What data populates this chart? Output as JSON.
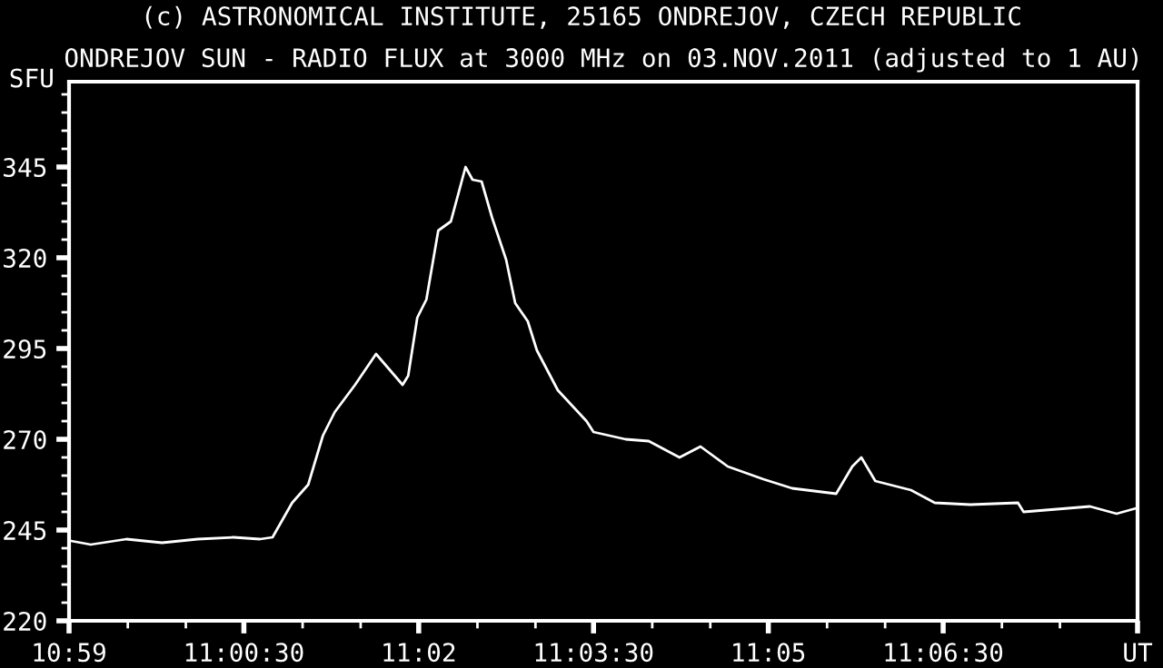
{
  "chart_data": {
    "type": "line",
    "title": "(c) ASTRONOMICAL INSTITUTE, 25165 ONDREJOV, CZECH REPUBLIC",
    "subtitle": "ONDREJOV SUN - RADIO FLUX at 3000 MHz on 03.NOV.2011 (adjusted to 1 AU)",
    "ylabel": "SFU",
    "x": [
      10.9836,
      10.9864,
      10.9915,
      10.9966,
      11.0017,
      11.0068,
      11.0106,
      11.0124,
      11.0152,
      11.0175,
      11.0196,
      11.0213,
      11.0242,
      11.0272,
      11.031,
      11.0318,
      11.0331,
      11.0344,
      11.0361,
      11.0379,
      11.04,
      11.041,
      11.0423,
      11.0438,
      11.0458,
      11.0471,
      11.0489,
      11.0502,
      11.0532,
      11.0573,
      11.0583,
      11.0629,
      11.0662,
      11.0706,
      11.0736,
      11.0775,
      11.0826,
      11.0867,
      11.093,
      11.0953,
      11.0966,
      11.0986,
      11.1037,
      11.1071,
      11.1122,
      11.119,
      11.1198,
      11.1293,
      11.1331,
      11.1359
    ],
    "series": [
      {
        "color": "#ffffff",
        "values": [
          242,
          241,
          242.5,
          241.5,
          242.5,
          243,
          242.5,
          243,
          252.5,
          257.5,
          271,
          277.5,
          285,
          293.5,
          285,
          287.5,
          303.5,
          308.5,
          327.5,
          330,
          345,
          341.5,
          341,
          331,
          319.5,
          307.5,
          302.5,
          294.5,
          283.5,
          275,
          272,
          270,
          269.5,
          265,
          268,
          262.5,
          259,
          256.5,
          255,
          262.5,
          265,
          258.5,
          256,
          252.5,
          252,
          252.5,
          250,
          251.5,
          249.5,
          251
        ]
      }
    ],
    "xlim": [
      10.9833,
      11.1361
    ],
    "xticks": [
      {
        "value": 10.9833,
        "label": "10:59"
      },
      {
        "value": 10.9917,
        "label": null
      },
      {
        "value": 11.0,
        "label": null
      },
      {
        "value": 11.0083,
        "label": "11:00:30"
      },
      {
        "value": 11.0167,
        "label": null
      },
      {
        "value": 11.025,
        "label": null
      },
      {
        "value": 11.0333,
        "label": "11:02"
      },
      {
        "value": 11.0417,
        "label": null
      },
      {
        "value": 11.05,
        "label": null
      },
      {
        "value": 11.0583,
        "label": "11:03:30"
      },
      {
        "value": 11.0667,
        "label": null
      },
      {
        "value": 11.075,
        "label": null
      },
      {
        "value": 11.0833,
        "label": "11:05"
      },
      {
        "value": 11.0917,
        "label": null
      },
      {
        "value": 11.1,
        "label": null
      },
      {
        "value": 11.1083,
        "label": "11:06:30"
      },
      {
        "value": 11.1167,
        "label": null
      },
      {
        "value": 11.125,
        "label": null
      },
      {
        "value": 11.1361,
        "label": "UT"
      }
    ],
    "ylim": [
      220,
      368.5
    ],
    "yticks": [
      220,
      {
        "value": 225,
        "label": null
      },
      {
        "value": 230,
        "label": null
      },
      {
        "value": 235,
        "label": null
      },
      {
        "value": 240,
        "label": null
      },
      245,
      {
        "value": 250,
        "label": null
      },
      {
        "value": 255,
        "label": null
      },
      {
        "value": 260,
        "label": null
      },
      {
        "value": 265,
        "label": null
      },
      270,
      {
        "value": 275,
        "label": null
      },
      {
        "value": 280,
        "label": null
      },
      {
        "value": 285,
        "label": null
      },
      {
        "value": 290,
        "label": null
      },
      295,
      {
        "value": 300,
        "label": null
      },
      {
        "value": 305,
        "label": null
      },
      {
        "value": 310,
        "label": null
      },
      {
        "value": 315,
        "label": null
      },
      320,
      {
        "value": 325,
        "label": null
      },
      {
        "value": 330,
        "label": null
      },
      {
        "value": 335,
        "label": null
      },
      {
        "value": 340,
        "label": null
      },
      345,
      {
        "value": 350,
        "label": null
      },
      {
        "value": 355,
        "label": null
      },
      {
        "value": 360,
        "label": null
      },
      {
        "value": 365,
        "label": null
      }
    ],
    "grid": false,
    "legend": false
  }
}
